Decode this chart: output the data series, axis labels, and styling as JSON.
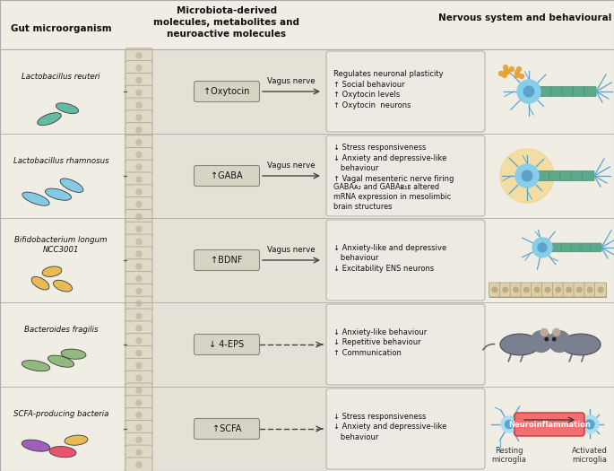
{
  "title_left": "Gut microorganism",
  "title_center": "Microbiota-derived\nmolecules, metabolites and\nneuroactive molecules",
  "title_right": "Nervous system and behavioural changes",
  "bg_color": "#f0ede5",
  "row_bg": "#e5e1d7",
  "cell_color": "#e0d9c8",
  "cell_edge": "#b0a888",
  "cell_inner": "#c8bfa8",
  "box_color": "#d8d4c5",
  "box_edge": "#888877",
  "eff_box_color": "#eceae2",
  "eff_box_edge": "#b0ae9f",
  "rows": [
    {
      "bacterium": "Lactobacillus reuteri",
      "bacterium_style": "single_color",
      "bacterium_color": "#5db8a0",
      "bacterium_shapes": [
        [
          55,
          -10,
          28,
          11,
          20
        ],
        [
          75,
          2,
          26,
          10,
          -15
        ]
      ],
      "molecule_box": "↑Oxytocin",
      "pathway": "Vagus nerve",
      "arrow_solid": true,
      "effects": "Regulates neuronal plasticity\n↑ Social behaviour\n↑ Oxytocin levels\n↑ Oxytocin  neurons",
      "extra_text": ""
    },
    {
      "bacterium": "Lactobacillus rhamnosus",
      "bacterium_style": "single_color",
      "bacterium_color": "#7ec8e3",
      "bacterium_shapes": [
        [
          40,
          -5,
          32,
          11,
          -20
        ],
        [
          65,
          0,
          30,
          11,
          -15
        ],
        [
          80,
          10,
          28,
          11,
          -25
        ]
      ],
      "molecule_box": "↑GABA",
      "pathway": "Vagus nerve",
      "arrow_solid": true,
      "effects": "↓ Stress responsiveness\n↓ Anxiety and depressive-like\n   behaviour\n↑ Vagal mesenteric nerve firing",
      "extra_text": "GABAᴀ₂ and GABAᴃ₁ᴇ altered\nmRNA expression in mesolimbic\nbrain structures"
    },
    {
      "bacterium": "Bifidobacterium longum\nNCC3001",
      "bacterium_style": "single_color",
      "bacterium_color": "#e8b84b",
      "bacterium_shapes": [
        [
          45,
          -5,
          22,
          11,
          -30
        ],
        [
          70,
          -8,
          22,
          11,
          -20
        ],
        [
          58,
          8,
          22,
          11,
          10
        ]
      ],
      "molecule_box": "↑BDNF",
      "pathway": "Vagus nerve",
      "arrow_solid": true,
      "effects": "↓ Anxiety-like and depressive\n   behaviour\n↓ Excitability ENS neurons",
      "extra_text": ""
    },
    {
      "bacterium": "Bacteroides fragilis",
      "bacterium_style": "single_color",
      "bacterium_color": "#8db87a",
      "bacterium_shapes": [
        [
          40,
          -3,
          32,
          11,
          -10
        ],
        [
          68,
          2,
          30,
          11,
          -15
        ],
        [
          82,
          10,
          28,
          11,
          -5
        ]
      ],
      "molecule_box": "↓ 4-EPS",
      "pathway": "",
      "arrow_solid": false,
      "effects": "↓ Anxiety-like behaviour\n↓ Repetitive behaviour\n↑ Communication",
      "extra_text": ""
    },
    {
      "bacterium": "SCFA-producing bacteria",
      "bacterium_style": "multi_color",
      "bacterium_color_multi": [
        "#9b59b6",
        "#e84c6a",
        "#e8b84b"
      ],
      "bacterium_shapes_multi": [
        [
          40,
          2,
          32,
          12,
          -10,
          "#9b59b6"
        ],
        [
          70,
          -5,
          30,
          12,
          -5,
          "#e84c6a"
        ],
        [
          85,
          8,
          26,
          11,
          5,
          "#e8b84b"
        ]
      ],
      "molecule_box": "↑SCFA",
      "pathway": "",
      "arrow_solid": false,
      "effects": "↓ Stress responsiveness\n↓ Anxiety and depressive-like\n   behaviour",
      "extra_text": ""
    }
  ]
}
